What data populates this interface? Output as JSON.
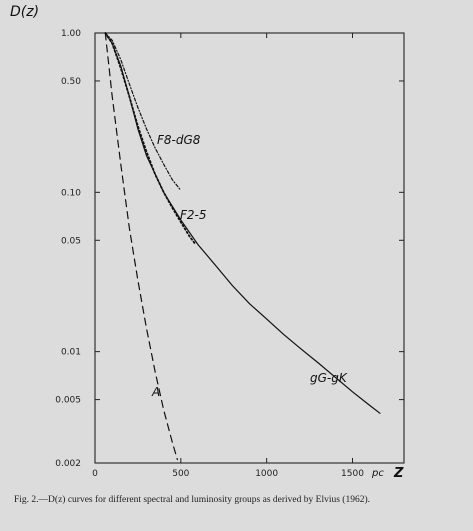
{
  "chart_data": {
    "type": "line",
    "title": "",
    "ylabel": "D(z)",
    "xlabel": "Z",
    "xunit": "pc",
    "xlim": [
      0,
      1800
    ],
    "ylim": [
      0.002,
      1.0
    ],
    "yscale": "log",
    "grid": false,
    "x_ticks": [
      {
        "value": 0,
        "label": "0"
      },
      {
        "value": 500,
        "label": "500"
      },
      {
        "value": 1000,
        "label": "1000"
      },
      {
        "value": 1500,
        "label": "1500"
      }
    ],
    "y_ticks": [
      {
        "value": 1.0,
        "label": "1.00"
      },
      {
        "value": 0.5,
        "label": "0.50"
      },
      {
        "value": 0.1,
        "label": "0.10"
      },
      {
        "value": 0.05,
        "label": "0.05"
      },
      {
        "value": 0.01,
        "label": "0.01"
      },
      {
        "value": 0.005,
        "label": "0.005"
      },
      {
        "value": 0.002,
        "label": "0.002"
      }
    ],
    "series": [
      {
        "name": "gG-gK",
        "style": "solid",
        "x": [
          60,
          100,
          150,
          200,
          250,
          300,
          400,
          500,
          600,
          700,
          800,
          900,
          1000,
          1100,
          1200,
          1300,
          1400,
          1500,
          1600,
          1660
        ],
        "y": [
          1.0,
          0.86,
          0.62,
          0.4,
          0.25,
          0.17,
          0.1,
          0.067,
          0.047,
          0.035,
          0.026,
          0.02,
          0.016,
          0.0128,
          0.0104,
          0.0085,
          0.0069,
          0.0056,
          0.0046,
          0.0041
        ]
      },
      {
        "name": "F8-dG8",
        "style": "dashdot",
        "x": [
          60,
          100,
          150,
          200,
          250,
          300,
          350,
          400,
          450,
          500
        ],
        "y": [
          1.0,
          0.9,
          0.68,
          0.48,
          0.34,
          0.25,
          0.19,
          0.15,
          0.12,
          0.103
        ]
      },
      {
        "name": "F2-5",
        "style": "dotted",
        "x": [
          60,
          100,
          150,
          200,
          250,
          300,
          350,
          400,
          450,
          500,
          550,
          580
        ],
        "y": [
          1.0,
          0.86,
          0.6,
          0.4,
          0.26,
          0.18,
          0.13,
          0.1,
          0.08,
          0.065,
          0.053,
          0.048
        ]
      },
      {
        "name": "A",
        "style": "dashed",
        "x": [
          60,
          100,
          150,
          200,
          250,
          300,
          350,
          400,
          450,
          480
        ],
        "y": [
          1.0,
          0.4,
          0.15,
          0.06,
          0.028,
          0.014,
          0.0075,
          0.0043,
          0.0027,
          0.0021
        ]
      }
    ]
  },
  "caption": "Fig. 2.—D(z) curves for different spectral and luminosity groups as derived by Elvius (1962)."
}
